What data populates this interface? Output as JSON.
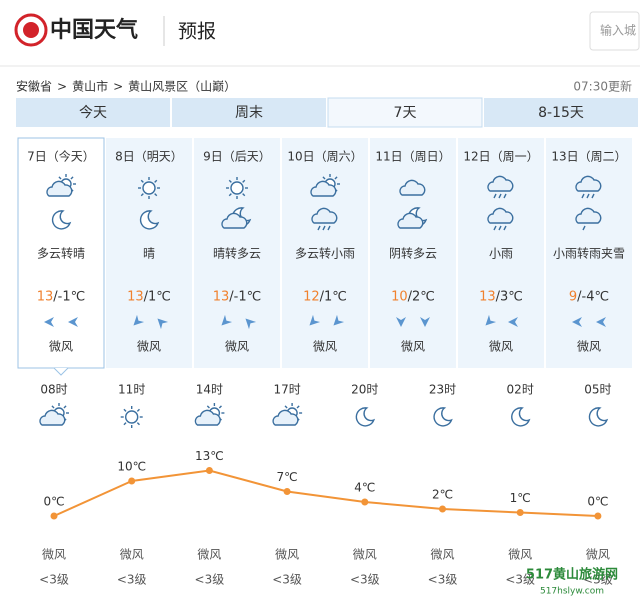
{
  "header": {
    "logo": "中国天气",
    "section": "预报",
    "search_placeholder": "输入城"
  },
  "breadcrumb": [
    "安徽省",
    "黄山市",
    "黄山风景区（山巅）"
  ],
  "breadcrumb_separator": ">",
  "updated": "07:30更新",
  "tabs": [
    "今天",
    "周末",
    "7天",
    "8-15天"
  ],
  "days": [
    {
      "date": "7日（今天）",
      "weather": "多云转晴",
      "high": "13",
      "low": "/-1℃",
      "wind": "微风"
    },
    {
      "date": "8日（明天）",
      "weather": "晴",
      "high": "13",
      "low": "/1℃",
      "wind": "微风"
    },
    {
      "date": "9日（后天）",
      "weather": "晴转多云",
      "high": "13",
      "low": "/-1℃",
      "wind": "微风"
    },
    {
      "date": "10日（周六）",
      "weather": "多云转小雨",
      "high": "12",
      "low": "/1℃",
      "wind": "微风"
    },
    {
      "date": "11日（周日）",
      "weather": "阴转多云",
      "high": "10",
      "low": "/2℃",
      "wind": "微风"
    },
    {
      "date": "12日（周一）",
      "weather": "小雨",
      "high": "13",
      "low": "/3℃",
      "wind": "微风"
    },
    {
      "date": "13日（周二）",
      "weather": "小雨转雨夹雪",
      "high": "9",
      "low": "/-4℃",
      "wind": "微风"
    }
  ],
  "chart_data": {
    "type": "line",
    "categories": [
      "08时",
      "11时",
      "14时",
      "17时",
      "20时",
      "23时",
      "02时",
      "05时"
    ],
    "values": [
      0,
      10,
      13,
      7,
      4,
      2,
      1,
      0
    ],
    "value_labels": [
      "0℃",
      "10℃",
      "13℃",
      "7℃",
      "4℃",
      "2℃",
      "1℃",
      "0℃"
    ],
    "color": "#f29437",
    "wind": [
      "微风",
      "微风",
      "微风",
      "微风",
      "微风",
      "微风",
      "微风",
      "微风"
    ],
    "wind_level": [
      "<3级",
      "<3级",
      "<3级",
      "<3级",
      "<3级",
      "<3级",
      "<3级",
      "<3级"
    ]
  },
  "watermark": [
    "517黄山旅游网",
    "517hslyw.com"
  ]
}
